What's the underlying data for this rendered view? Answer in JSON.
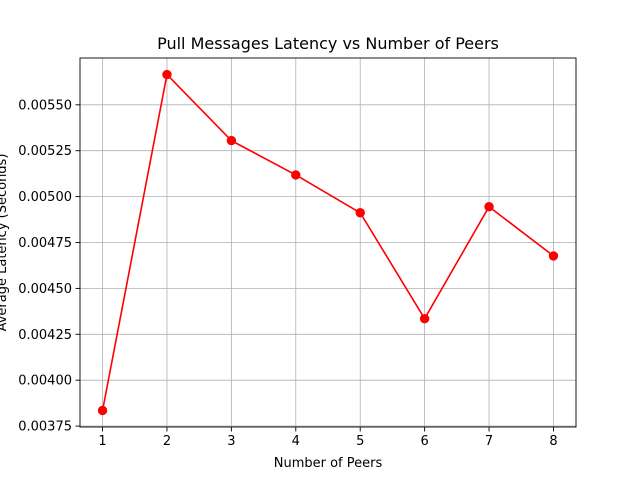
{
  "chart_data": {
    "type": "line",
    "title": "Pull Messages Latency vs Number of Peers",
    "xlabel": "Number of Peers",
    "ylabel": "Average Latency (Seconds)",
    "x": [
      1,
      2,
      3,
      4,
      5,
      6,
      7,
      8
    ],
    "series": [
      {
        "values": [
          0.003835,
          0.005665,
          0.005305,
          0.005118,
          0.004912,
          0.004335,
          0.004945,
          0.004677
        ],
        "color": "#ff0000",
        "marker": "circle"
      }
    ],
    "xlim": [
      0.65,
      8.35
    ],
    "ylim": [
      0.003745,
      0.005755
    ],
    "xticks": [
      1,
      2,
      3,
      4,
      5,
      6,
      7,
      8
    ],
    "xtick_labels": [
      "1",
      "2",
      "3",
      "4",
      "5",
      "6",
      "7",
      "8"
    ],
    "yticks": [
      0.00375,
      0.004,
      0.00425,
      0.0045,
      0.00475,
      0.005,
      0.00525,
      0.0055
    ],
    "ytick_labels": [
      "0.00375",
      "0.00400",
      "0.00425",
      "0.00450",
      "0.00475",
      "0.00500",
      "0.00525",
      "0.00550"
    ],
    "grid": true,
    "grid_color": "#b0b0b0"
  }
}
